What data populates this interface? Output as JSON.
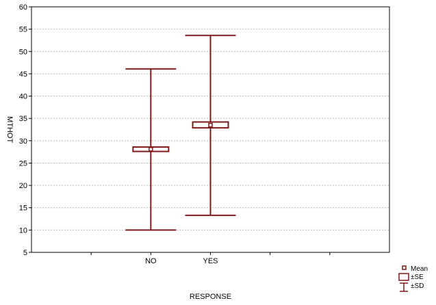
{
  "chart_data": {
    "type": "box",
    "title": "",
    "xlabel": "RESPONSE",
    "ylabel": "MTHOT",
    "ylim": [
      5,
      60
    ],
    "yticks": [
      5,
      10,
      15,
      20,
      25,
      30,
      35,
      40,
      45,
      50,
      55,
      60
    ],
    "categories": [
      "NO",
      "YES"
    ],
    "grid": "horizontal-dashed",
    "legend_position": "bottom-right",
    "legend": {
      "mean_label": "Mean",
      "se_label": "±SE",
      "sd_label": "±SD"
    },
    "groups": [
      {
        "category": "NO",
        "mean": 28.1,
        "se_low": 27.6,
        "se_high": 28.6,
        "sd_low": 10.0,
        "sd_high": 46.1
      },
      {
        "category": "YES",
        "mean": 33.5,
        "se_low": 32.9,
        "se_high": 34.2,
        "sd_low": 13.3,
        "sd_high": 53.6
      }
    ],
    "color": "#7f1a1a"
  }
}
